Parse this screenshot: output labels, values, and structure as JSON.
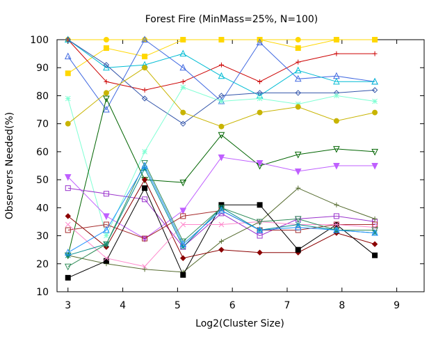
{
  "chart_data": {
    "type": "line",
    "title": "Forest Fire (MinMass=25%, N=100)",
    "xlabel": "Log2(Cluster Size)",
    "ylabel": "Observers Needed(%)",
    "xlim": [
      2.8,
      9.5
    ],
    "ylim": [
      10,
      100
    ],
    "xticks": [
      "3",
      "4",
      "5",
      "6",
      "7",
      "8",
      "9"
    ],
    "yticks": [
      "10",
      "20",
      "30",
      "40",
      "50",
      "60",
      "70",
      "80",
      "90",
      "100"
    ],
    "grid": false,
    "legend": "none",
    "x": [
      3.0,
      3.7,
      4.4,
      5.1,
      5.8,
      6.5,
      7.2,
      7.9,
      8.6
    ],
    "series": [
      {
        "color": "#ffd700",
        "marker": "square-filled",
        "values": [
          88,
          97,
          94,
          100,
          100,
          100,
          97,
          100,
          100
        ]
      },
      {
        "color": "#ffd700",
        "marker": "circle-filled",
        "values": [
          100,
          100,
          100,
          100,
          100,
          100,
          100,
          100,
          100
        ]
      },
      {
        "color": "#cc0000",
        "marker": "plus",
        "values": [
          100,
          85,
          82,
          85,
          91,
          85,
          92,
          95,
          95
        ]
      },
      {
        "color": "#4169e1",
        "marker": "triangle-up",
        "values": [
          94,
          75,
          100,
          90,
          78,
          99,
          86,
          87,
          85
        ]
      },
      {
        "color": "#00bcd4",
        "marker": "triangle-up",
        "values": [
          100,
          90,
          91,
          95,
          87,
          80,
          89,
          85,
          85
        ]
      },
      {
        "color": "#3355aa",
        "marker": "diamond",
        "values": [
          100,
          91,
          79,
          70,
          80,
          81,
          81,
          81,
          82
        ]
      },
      {
        "color": "#7fffd4",
        "marker": "star",
        "values": [
          79,
          30,
          60,
          83,
          78,
          79,
          77,
          80,
          78
        ]
      },
      {
        "color": "#c8b400",
        "marker": "circle-filled",
        "values": [
          70,
          81,
          90,
          74,
          69,
          74,
          76,
          71,
          74
        ]
      },
      {
        "color": "#006400",
        "marker": "triangle-down",
        "values": [
          23,
          79,
          50,
          49,
          66,
          55,
          59,
          61,
          60
        ]
      },
      {
        "color": "#bf5fff",
        "marker": "triangle-down-filled",
        "values": [
          51,
          37,
          29,
          39,
          58,
          56,
          53,
          55,
          55
        ]
      },
      {
        "color": "#9932cc",
        "marker": "square",
        "values": [
          47,
          45,
          43,
          26,
          38,
          30,
          36,
          37,
          35
        ]
      },
      {
        "color": "#556b2f",
        "marker": "plus",
        "values": [
          23,
          20,
          18,
          17,
          28,
          35,
          47,
          41,
          36
        ]
      },
      {
        "color": "#8b0000",
        "marker": "diamond-filled",
        "values": [
          37,
          26,
          50,
          22,
          25,
          24,
          24,
          31,
          27
        ]
      },
      {
        "color": "#000000",
        "marker": "square-filled",
        "values": [
          15,
          21,
          47,
          16,
          41,
          41,
          25,
          34,
          23
        ]
      },
      {
        "color": "#a52a2a",
        "marker": "square",
        "values": [
          32,
          34,
          29,
          37,
          39,
          32,
          32,
          34,
          34
        ]
      },
      {
        "color": "#ff88cc",
        "marker": "x",
        "values": [
          34,
          22,
          19,
          34,
          34,
          35,
          34,
          34,
          33
        ]
      },
      {
        "color": "#008b8b",
        "marker": "star",
        "values": [
          23,
          27,
          54,
          26,
          40,
          32,
          34,
          32,
          31
        ]
      },
      {
        "color": "#2e8b57",
        "marker": "triangle-down",
        "values": [
          19,
          27,
          56,
          28,
          40,
          35,
          36,
          32,
          32
        ]
      },
      {
        "color": "#1e90ff",
        "marker": "triangle-up",
        "values": [
          24,
          32,
          55,
          27,
          39,
          32,
          33,
          32,
          31
        ]
      }
    ]
  }
}
